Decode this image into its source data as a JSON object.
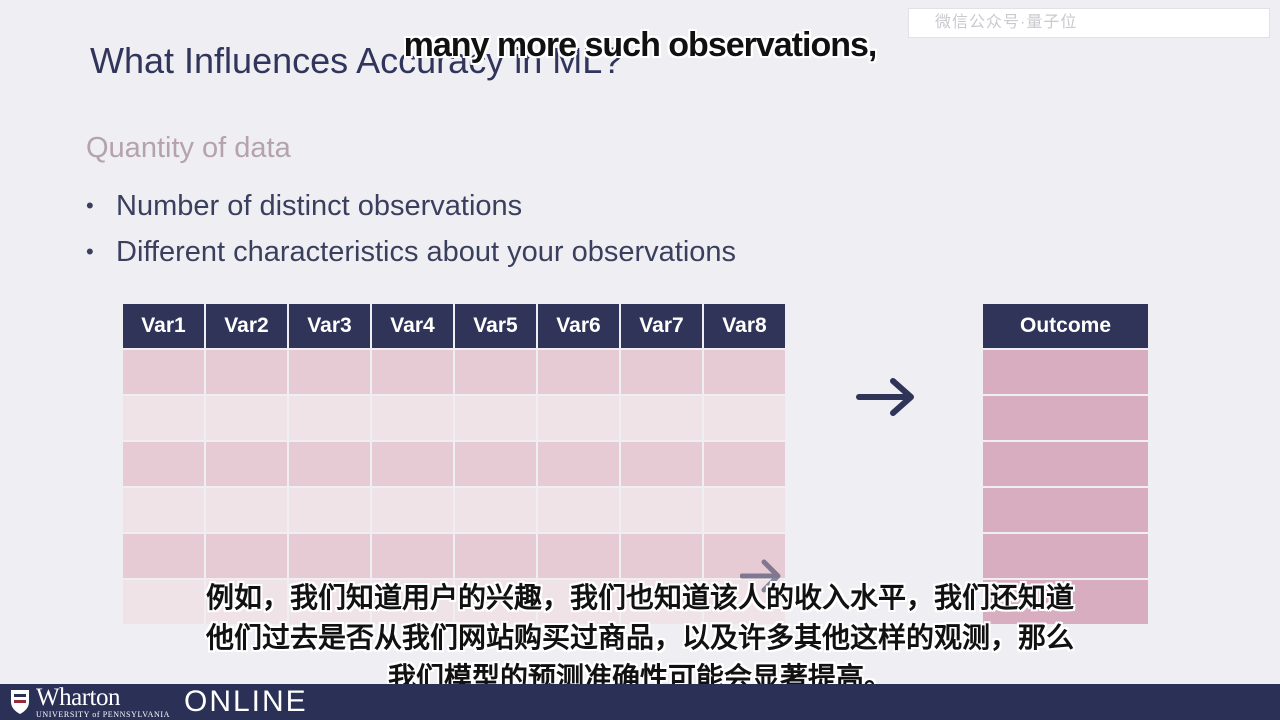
{
  "watermark": "微信公众号·量子位",
  "slide": {
    "title": "What Influences Accuracy in ML?",
    "subheading": "Quantity of data",
    "bullets": [
      "Number of distinct observations",
      "Different characteristics about your observations"
    ],
    "variables": [
      "Var1",
      "Var2",
      "Var3",
      "Var4",
      "Var5",
      "Var6",
      "Var7",
      "Var8"
    ],
    "outcome_header": "Outcome",
    "row_count": 6
  },
  "captions": {
    "english": "many more such observations,",
    "chinese": [
      "例如，我们知道用户的兴趣，我们也知道该人的收入水平，我们还知道",
      "他们过去是否从我们网站购买过商品，以及许多其他这样的观测，那么",
      "我们模型的预测准确性可能会显著提高。"
    ]
  },
  "footer": {
    "brand": "Wharton",
    "university": "UNIVERSITY of PENNSYLVANIA",
    "online": "ONLINE"
  },
  "colors": {
    "header_navy": "#2f3458",
    "row_pink": "#e6cbd5",
    "row_light": "#efe3e8",
    "outcome_pink": "#d8adbf",
    "footer_navy": "#2a3056"
  }
}
